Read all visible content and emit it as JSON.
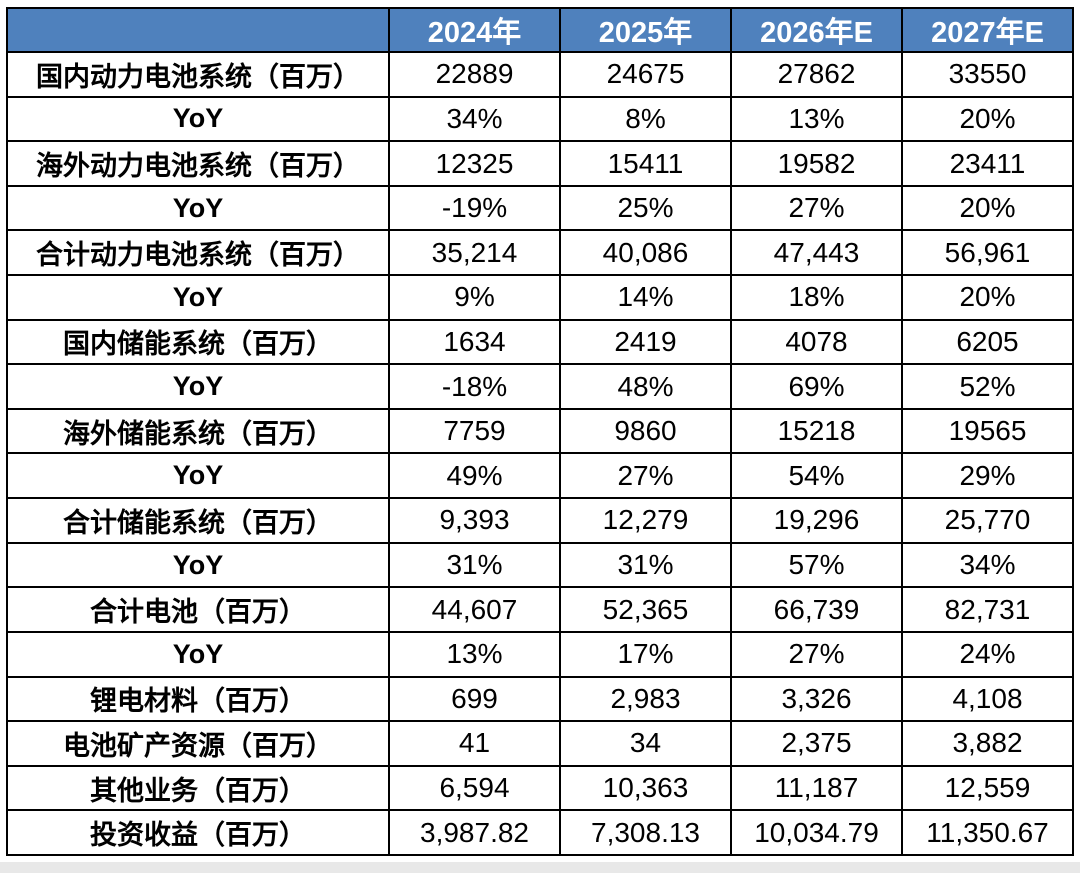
{
  "table": {
    "header": {
      "corner": "",
      "columns": [
        "2024年",
        "2025年",
        "2026年E",
        "2027年E"
      ]
    },
    "rows": [
      {
        "label": "国内动力电池系统（百万）",
        "values": [
          "22889",
          "24675",
          "27862",
          "33550"
        ]
      },
      {
        "label": "YoY",
        "values": [
          "34%",
          "8%",
          "13%",
          "20%"
        ]
      },
      {
        "label": "海外动力电池系统（百万）",
        "values": [
          "12325",
          "15411",
          "19582",
          "23411"
        ]
      },
      {
        "label": "YoY",
        "values": [
          "-19%",
          "25%",
          "27%",
          "20%"
        ]
      },
      {
        "label": "合计动力电池系统（百万）",
        "values": [
          "35,214",
          "40,086",
          "47,443",
          "56,961"
        ]
      },
      {
        "label": "YoY",
        "values": [
          "9%",
          "14%",
          "18%",
          "20%"
        ]
      },
      {
        "label": "国内储能系统（百万）",
        "values": [
          "1634",
          "2419",
          "4078",
          "6205"
        ]
      },
      {
        "label": "YoY",
        "values": [
          "-18%",
          "48%",
          "69%",
          "52%"
        ]
      },
      {
        "label": "海外储能系统（百万）",
        "values": [
          "7759",
          "9860",
          "15218",
          "19565"
        ]
      },
      {
        "label": "YoY",
        "values": [
          "49%",
          "27%",
          "54%",
          "29%"
        ]
      },
      {
        "label": "合计储能系统（百万）",
        "values": [
          "9,393",
          "12,279",
          "19,296",
          "25,770"
        ]
      },
      {
        "label": "YoY",
        "values": [
          "31%",
          "31%",
          "57%",
          "34%"
        ]
      },
      {
        "label": "合计电池（百万）",
        "values": [
          "44,607",
          "52,365",
          "66,739",
          "82,731"
        ]
      },
      {
        "label": "YoY",
        "values": [
          "13%",
          "17%",
          "27%",
          "24%"
        ]
      },
      {
        "label": "锂电材料（百万）",
        "values": [
          "699",
          "2,983",
          "3,326",
          "4,108"
        ]
      },
      {
        "label": "电池矿产资源（百万）",
        "values": [
          "41",
          "34",
          "2,375",
          "3,882"
        ]
      },
      {
        "label": "其他业务（百万）",
        "values": [
          "6,594",
          "10,363",
          "11,187",
          "12,559"
        ]
      },
      {
        "label": "投资收益（百万）",
        "values": [
          "3,987.82",
          "7,308.13",
          "10,034.79",
          "11,350.67"
        ]
      }
    ]
  },
  "colors": {
    "header_bg": "#4F81BD",
    "header_text": "#FFFFFF",
    "grid_border": "#000000",
    "cell_bg": "#FFFFFF",
    "cell_text": "#000000",
    "bottom_strip": "#E8E8E8"
  },
  "chart_data": {
    "type": "table",
    "title": "",
    "columns": [
      "",
      "2024年",
      "2025年",
      "2026年E",
      "2027年E"
    ],
    "rows": [
      [
        "国内动力电池系统（百万）",
        22889,
        24675,
        27862,
        33550
      ],
      [
        "YoY",
        "34%",
        "8%",
        "13%",
        "20%"
      ],
      [
        "海外动力电池系统（百万）",
        12325,
        15411,
        19582,
        23411
      ],
      [
        "YoY",
        "-19%",
        "25%",
        "27%",
        "20%"
      ],
      [
        "合计动力电池系统（百万）",
        35214,
        40086,
        47443,
        56961
      ],
      [
        "YoY",
        "9%",
        "14%",
        "18%",
        "20%"
      ],
      [
        "国内储能系统（百万）",
        1634,
        2419,
        4078,
        6205
      ],
      [
        "YoY",
        "-18%",
        "48%",
        "69%",
        "52%"
      ],
      [
        "海外储能系统（百万）",
        7759,
        9860,
        15218,
        19565
      ],
      [
        "YoY",
        "49%",
        "27%",
        "54%",
        "29%"
      ],
      [
        "合计储能系统（百万）",
        9393,
        12279,
        19296,
        25770
      ],
      [
        "YoY",
        "31%",
        "31%",
        "57%",
        "34%"
      ],
      [
        "合计电池（百万）",
        44607,
        52365,
        66739,
        82731
      ],
      [
        "YoY",
        "13%",
        "17%",
        "27%",
        "24%"
      ],
      [
        "锂电材料（百万）",
        699,
        2983,
        3326,
        4108
      ],
      [
        "电池矿产资源（百万）",
        41,
        34,
        2375,
        3882
      ],
      [
        "其他业务（百万）",
        6594,
        10363,
        11187,
        12559
      ],
      [
        "投资收益（百万）",
        3987.82,
        7308.13,
        10034.79,
        11350.67
      ]
    ]
  }
}
